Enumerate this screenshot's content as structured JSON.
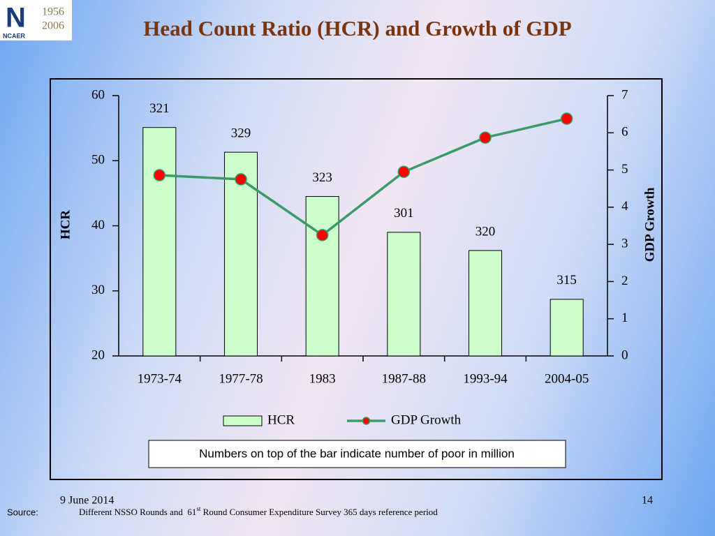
{
  "header": {
    "title": "Head Count Ratio (HCR) and Growth of GDP",
    "logo": {
      "name": "NCAER",
      "years": [
        "1956",
        "2006"
      ]
    }
  },
  "chart_data": {
    "type": "bar",
    "categories": [
      "1973-74",
      "1977-78",
      "1983",
      "1987-88",
      "1993-94",
      "2004-05"
    ],
    "series": [
      {
        "name": "HCR",
        "type": "bar",
        "color": "#ccffcc",
        "values": [
          55.1,
          51.3,
          44.5,
          39.0,
          36.2,
          28.7
        ]
      },
      {
        "name": "GDP Growth",
        "type": "line",
        "axis": "y2",
        "color": "#3a9a68",
        "marker_color": "#ff0000",
        "values": [
          4.86,
          4.75,
          3.25,
          4.95,
          5.87,
          6.38
        ]
      }
    ],
    "bar_annotations": [
      321,
      329,
      323,
      301,
      320,
      315
    ],
    "ylabel": "HCR",
    "y2label": "GDP Growth",
    "ylim": [
      20,
      60
    ],
    "yticks": [
      20,
      30,
      40,
      50,
      60
    ],
    "y2lim": [
      0,
      7
    ],
    "y2ticks": [
      0,
      1,
      2,
      3,
      4,
      5,
      6,
      7
    ],
    "note": "Numbers on top of the bar indicate number of poor in million"
  },
  "footer": {
    "date": "9 June 2014",
    "page": "14",
    "source_label": "Source:",
    "source_text": [
      "Different NSSO Rounds and  61",
      "st",
      " Round Consumer Expenditure Survey 365 days reference period"
    ]
  }
}
